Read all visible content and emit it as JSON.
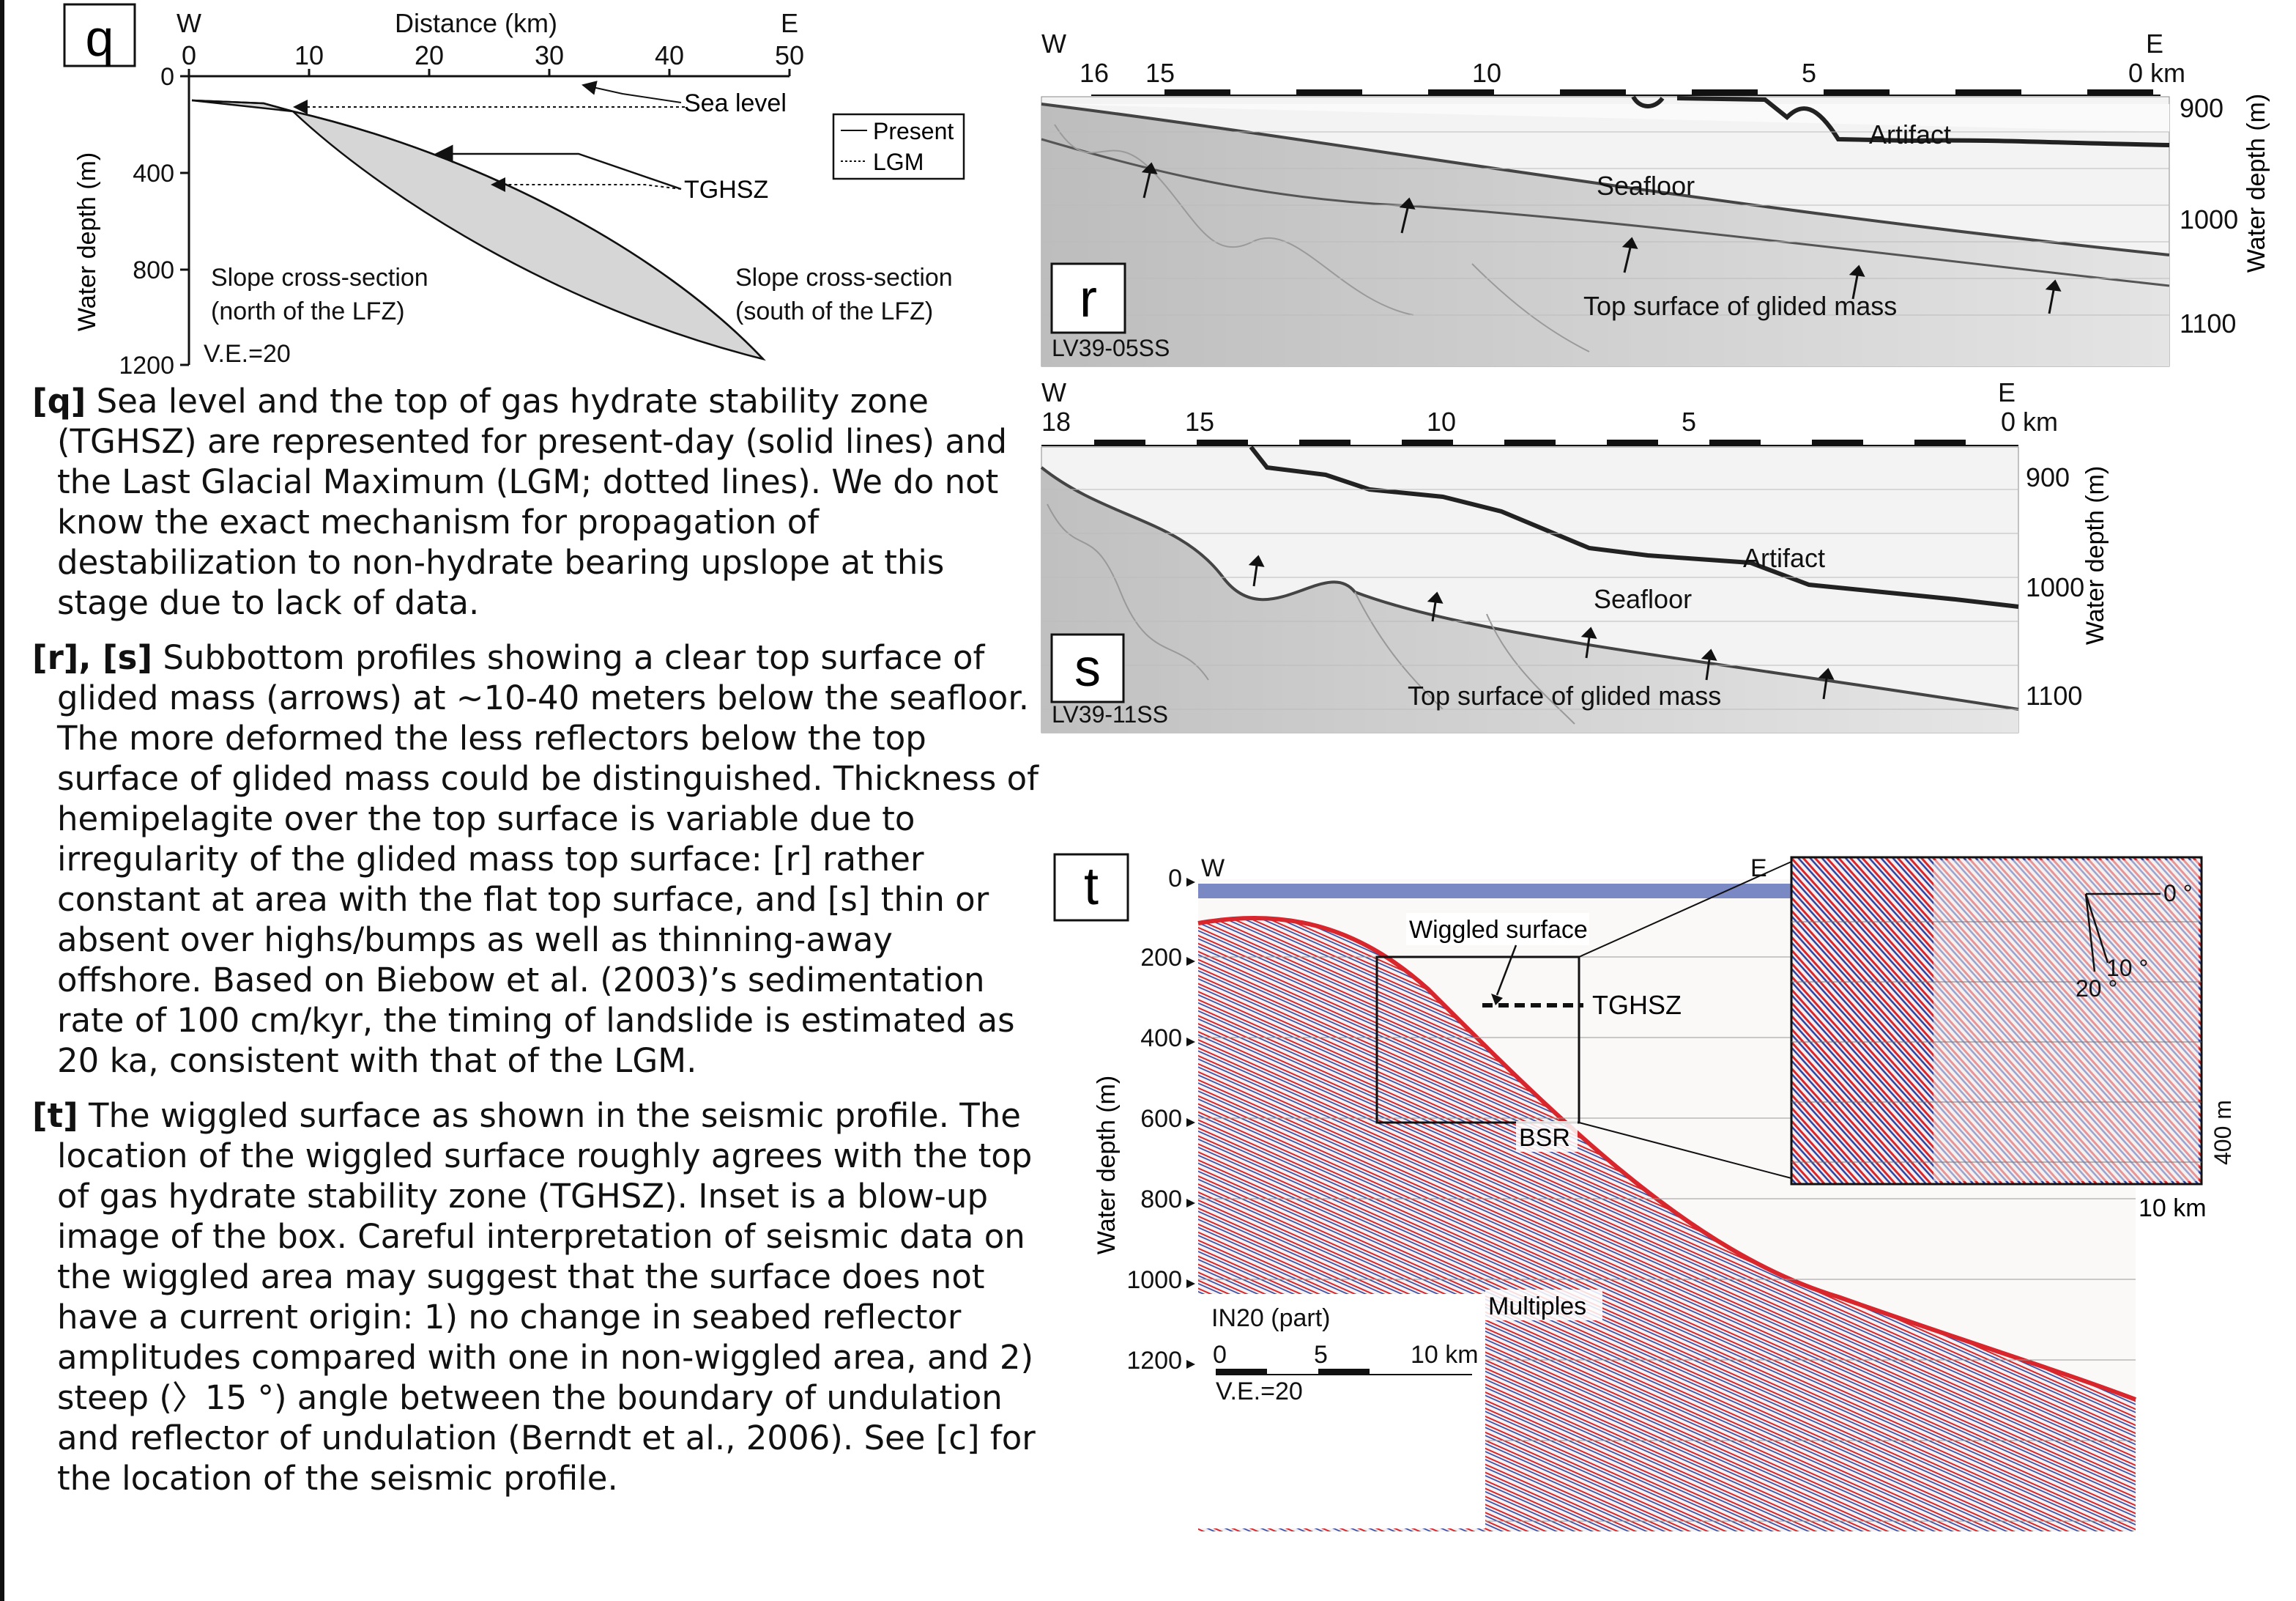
{
  "panel_q": {
    "letter": "q",
    "x_axis_title": "Distance (km)",
    "x_ticks": [
      "0",
      "10",
      "20",
      "30",
      "40",
      "50"
    ],
    "west": "W",
    "east": "E",
    "y_axis_title": "Water depth (m)",
    "y_ticks": [
      "0",
      "400",
      "800",
      "1200"
    ],
    "legend": {
      "present": "Present",
      "lgm": "LGM"
    },
    "labels": {
      "sea_level": "Sea level",
      "tghsz": "TGHSZ",
      "north": "Slope cross-section\n(north of the LFZ)",
      "north_l1": "Slope cross-section",
      "north_l2": "(north of the LFZ)",
      "south_l1": "Slope cross-section",
      "south_l2": "(south of the LFZ)",
      "ve": "V.E.=20"
    },
    "colors": {
      "fill": "#d6d6d6",
      "line": "#111111"
    }
  },
  "panel_r": {
    "letter": "r",
    "profile": "LV39-05SS",
    "west": "W",
    "east": "E",
    "km_ticks": [
      "16",
      "15",
      "10",
      "5",
      "0 km"
    ],
    "depth_ticks": [
      "900",
      "1000",
      "1100"
    ],
    "depth_title": "Water depth (m)",
    "labels": {
      "artifact": "Artifact",
      "seafloor": "Seafloor",
      "glided": "Top surface of glided mass"
    }
  },
  "panel_s": {
    "letter": "s",
    "profile": "LV39-11SS",
    "west": "W",
    "east": "E",
    "km_ticks": [
      "18",
      "15",
      "10",
      "5",
      "0 km"
    ],
    "depth_ticks": [
      "900",
      "1000",
      "1100"
    ],
    "depth_title": "Water depth (m)",
    "labels": {
      "artifact": "Artifact",
      "seafloor": "Seafloor",
      "glided": "Top surface of glided mass"
    }
  },
  "panel_t": {
    "letter": "t",
    "west": "W",
    "east": "E",
    "y_title": "Water depth (m)",
    "y_ticks": [
      "0",
      "200",
      "400",
      "600",
      "800",
      "1000",
      "1200"
    ],
    "labels": {
      "wiggled": "Wiggled surface",
      "tghsz": "TGHSZ",
      "bsr": "BSR",
      "multiples": "Multiples",
      "line_name": "IN20 (part)",
      "scale_ticks": [
        "0",
        "5",
        "10 km"
      ],
      "ve": "V.E.=20",
      "km10": "10 km",
      "m400": "400 m",
      "angle0": "0 °",
      "angle10": "10 °",
      "angle20": "20 °"
    },
    "colors": {
      "red": "#d8262c",
      "blue": "#2a3f9e"
    }
  },
  "caption": {
    "q_tag": "[q]",
    "q_text": " Sea level and the top of gas hydrate stability zone (TGHSZ) are represented for present-day (solid lines) and the Last Glacial Maximum (LGM; dotted lines). We do not know the exact mechanism for propagation of destabilization to non-hydrate bearing upslope  at this stage due to lack of data.",
    "rs_tag": "[r], [s]",
    "rs_text": " Subbottom profiles showing a clear top surface of glided mass (arrows) at ~10-40 meters below the seafloor. The more deformed the less reflectors below the top surface of glided mass could be distinguished. Thickness of hemipelagite over the top surface is variable due to irregularity of the glided mass top surface: [r] rather constant at area with the flat top surface, and [s] thin or absent over highs/bumps as well as thinning-away offshore. Based on Biebow et al. (2003)’s sedimentation rate of  100 cm/kyr, the timing of landslide is estimated as 20 ka, consistent with that of the LGM.",
    "t_tag": "[t]",
    "t_text": " The wiggled surface as shown in the seismic profile. The location of the wiggled surface roughly agrees with the top of gas hydrate stability zone (TGHSZ). Inset is a blow-up image of the box. Careful interpretation of seismic data on the wiggled area may suggest that the surface does not have a current origin: 1) no change in seabed reflector amplitudes compared with one in non-wiggled area, and 2) steep (〉15 °) angle between the boundary of undulation and reflector of undulation (Berndt et al., 2006). See [c] for the location of the seismic profile."
  }
}
